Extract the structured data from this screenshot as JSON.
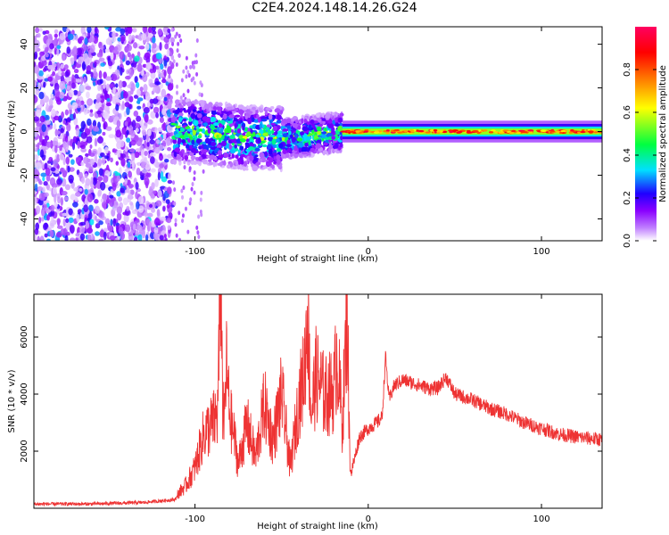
{
  "title": "C2E4.2024.148.14.26.G24",
  "chart_data": [
    {
      "type": "heatmap",
      "xlabel": "Height of straight line (km)",
      "ylabel": "Frequency (Hz)",
      "xlim": [
        -193,
        135
      ],
      "ylim": [
        -50,
        48
      ],
      "xticks": [
        -100,
        0,
        100
      ],
      "yticks": [
        -40,
        -20,
        0,
        20,
        40
      ],
      "colorbar": {
        "label": "Normalized spectral amplitude",
        "range": [
          0,
          1
        ],
        "ticks": [
          0.0,
          0.2,
          0.4,
          0.6,
          0.8
        ],
        "colormap": [
          "#ffffff",
          "#c080ff",
          "#8a00ff",
          "#2000ff",
          "#00e0ff",
          "#00ff40",
          "#ffff00",
          "#ff8000",
          "#ff0000",
          "#ff0060"
        ]
      },
      "bands": [
        {
          "x_range": [
            -193,
            -113
          ],
          "description": "broadband noise",
          "freq_range": [
            -50,
            48
          ],
          "amplitude": 0.1
        },
        {
          "x_range": [
            -113,
            -15
          ],
          "center_freq": [
            0,
            0,
            -3,
            -3,
            -1,
            0
          ],
          "center_x": [
            -113,
            -100,
            -70,
            -45,
            -25,
            -15
          ],
          "half_width": 5,
          "amplitude": 0.35
        },
        {
          "x_range": [
            -15,
            135
          ],
          "center_freq": 0,
          "half_width": 2,
          "amplitude": 0.7
        }
      ]
    },
    {
      "type": "line",
      "xlabel": "Height of straight line (km)",
      "ylabel": "SNR (10 * v/v)",
      "xlim": [
        -193,
        135
      ],
      "ylim": [
        0,
        7500
      ],
      "xticks": [
        -100,
        0,
        100
      ],
      "yticks": [
        2000,
        4000,
        6000
      ],
      "color": "#ee3333",
      "series": [
        {
          "x": [
            -193,
            -160,
            -130,
            -112,
            -105,
            -100,
            -95,
            -90,
            -87,
            -85,
            -84,
            -83,
            -82,
            -80,
            -77,
            -75,
            -70,
            -65,
            -60,
            -55,
            -50,
            -45,
            -40,
            -37,
            -35,
            -33,
            -30,
            -25,
            -20,
            -18,
            -15,
            -12,
            -11,
            -10,
            -5,
            0,
            5,
            8,
            10,
            12,
            15,
            20,
            25,
            30,
            35,
            40,
            45,
            50,
            60,
            70,
            80,
            90,
            100,
            110,
            120,
            135
          ],
          "y": [
            150,
            150,
            200,
            300,
            700,
            1200,
            2200,
            2500,
            2800,
            7200,
            3000,
            2500,
            4300,
            2800,
            2000,
            1300,
            2500,
            1500,
            3100,
            2000,
            3400,
            1200,
            3200,
            4000,
            5900,
            2800,
            4000,
            3300,
            3500,
            4600,
            2500,
            6000,
            2200,
            1200,
            2500,
            2800,
            3000,
            3200,
            5300,
            3800,
            4300,
            4500,
            4400,
            4300,
            4200,
            4200,
            4600,
            4000,
            3800,
            3500,
            3300,
            3000,
            2800,
            2600,
            2500,
            2400
          ]
        }
      ]
    }
  ]
}
